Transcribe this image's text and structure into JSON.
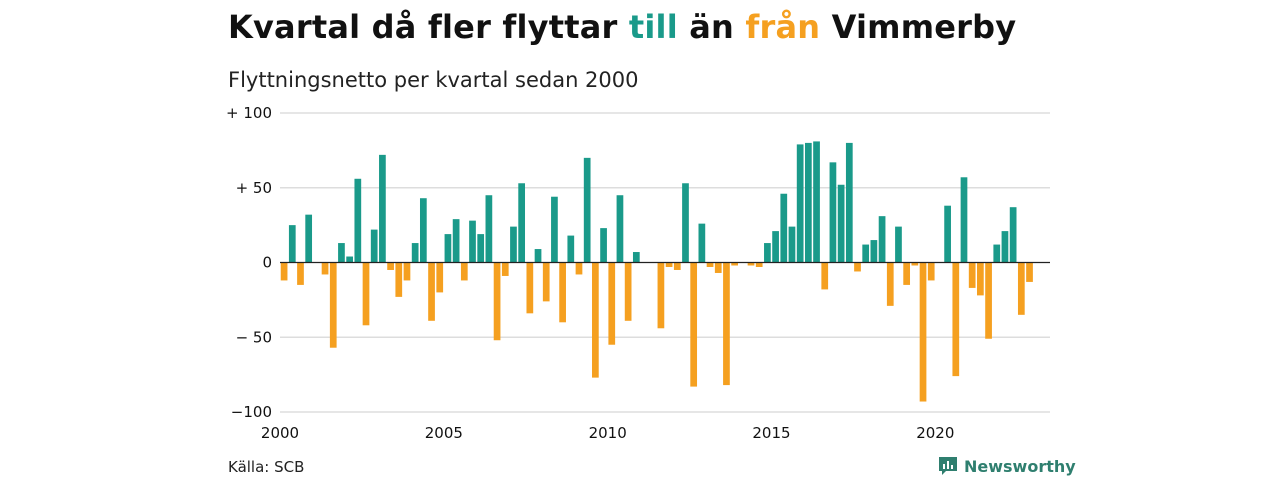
{
  "title": {
    "part1": "Kvartal då fler flyttar ",
    "till": "till",
    "part2": " än ",
    "fran": "från",
    "part3": " Vimmerby"
  },
  "subtitle": "Flyttningsnetto per kvartal sedan 2000",
  "source": "Källa: SCB",
  "brand": {
    "name": "Newsworthy",
    "icon": "newsworthy-logo-icon"
  },
  "colors": {
    "positive": "#1a9a8a",
    "negative": "#f5a020",
    "grid": "#dddddd",
    "title_till": "#1a9a8a",
    "title_fran": "#f5a020",
    "brand": "#2f7f6f"
  },
  "chart_data": {
    "type": "bar",
    "xlim": [
      2000,
      2023.5
    ],
    "ylim": [
      -100,
      100
    ],
    "y_ticks": [
      {
        "value": 100,
        "label": "+ 100"
      },
      {
        "value": 50,
        "label": "+  50"
      },
      {
        "value": 0,
        "label": "0"
      },
      {
        "value": -50,
        "label": "− 50"
      },
      {
        "value": -100,
        "label": "−100"
      }
    ],
    "x_ticks": [
      {
        "value": 2000,
        "label": "2000"
      },
      {
        "value": 2005,
        "label": "2005"
      },
      {
        "value": 2010,
        "label": "2010"
      },
      {
        "value": 2015,
        "label": "2015"
      },
      {
        "value": 2020,
        "label": "2020"
      }
    ],
    "grid": true,
    "start_year": 2000,
    "values": [
      -12,
      25,
      -15,
      32,
      0,
      -8,
      -57,
      13,
      4,
      56,
      -42,
      22,
      72,
      -5,
      -23,
      -12,
      13,
      43,
      -39,
      -20,
      19,
      29,
      -12,
      28,
      19,
      45,
      -52,
      -9,
      24,
      53,
      -34,
      9,
      -26,
      44,
      -40,
      18,
      -8,
      70,
      -77,
      23,
      -55,
      45,
      -39,
      7,
      0,
      0,
      -44,
      -3,
      -5,
      53,
      -83,
      26,
      -3,
      -7,
      -82,
      -2,
      0,
      -2,
      -3,
      13,
      21,
      46,
      24,
      79,
      80,
      81,
      -18,
      67,
      52,
      80,
      -6,
      12,
      15,
      31,
      -29,
      24,
      -15,
      -2,
      -93,
      -12,
      0,
      38,
      -76,
      57,
      -17,
      -22,
      -51,
      12,
      21,
      37,
      -35,
      -13
    ]
  }
}
